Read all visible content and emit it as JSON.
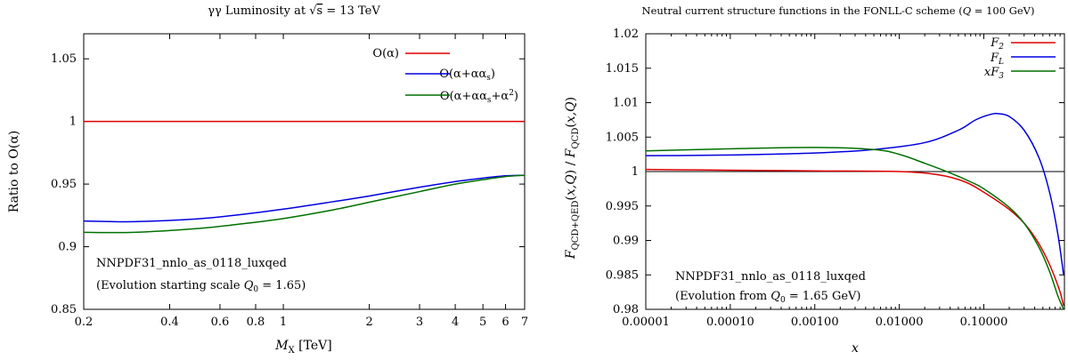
{
  "chart_data": [
    {
      "type": "line",
      "title": "γγ Luminosity at √s = 13 TeV",
      "xlabel": "M_X [TeV]",
      "ylabel": "Ratio to O(α)",
      "x_scale": "log",
      "xlim": [
        0.2,
        7
      ],
      "ylim": [
        0.85,
        1.07
      ],
      "x_ticks": [
        "0.2",
        "0.4",
        "0.6",
        "0.8",
        "1",
        "2",
        "3",
        "4",
        "5",
        "6",
        "7"
      ],
      "y_ticks": [
        "0.85",
        "0.9",
        "0.95",
        "1",
        "1.05"
      ],
      "legend_position": "top-right",
      "series": [
        {
          "name": "O(α)",
          "color": "#e00000",
          "x": [
            0.2,
            7
          ],
          "y": [
            1.0,
            1.0
          ]
        },
        {
          "name": "O(α+αα_s)",
          "color": "#0000e0",
          "x": [
            0.2,
            0.3,
            0.5,
            0.7,
            1,
            1.5,
            2,
            3,
            4,
            5,
            6,
            7
          ],
          "y": [
            0.9205,
            0.92,
            0.9222,
            0.9255,
            0.93,
            0.936,
            0.9405,
            0.9475,
            0.952,
            0.9548,
            0.9566,
            0.957
          ]
        },
        {
          "name": "O(α+αα_s+α²)",
          "color": "#007000",
          "x": [
            0.2,
            0.3,
            0.5,
            0.7,
            1,
            1.5,
            2,
            3,
            4,
            5,
            6,
            7
          ],
          "y": [
            0.9115,
            0.9115,
            0.9145,
            0.918,
            0.9225,
            0.9295,
            0.9355,
            0.944,
            0.95,
            0.9535,
            0.956,
            0.957
          ]
        }
      ],
      "annotations": [
        "NNPDF31_nnlo_as_0118_luxqed",
        "(Evolution starting scale Q_0 = 1.65)"
      ]
    },
    {
      "type": "line",
      "title": "Neutral current structure functions in the FONLL-C scheme (Q = 100 GeV)",
      "xlabel": "x",
      "ylabel": "F_QCD+QED(x,Q) / F_QCD(x,Q)",
      "x_scale": "log",
      "xlim": [
        1e-05,
        0.9
      ],
      "ylim": [
        0.98,
        1.02
      ],
      "x_ticks": [
        "0.00001",
        "0.00010",
        "0.00100",
        "0.01000",
        "0.10000"
      ],
      "y_ticks": [
        "0.98",
        "0.985",
        "0.99",
        "0.995",
        "1",
        "1.005",
        "1.01",
        "1.015",
        "1.02"
      ],
      "legend_position": "top-right",
      "reference_line": 1.0,
      "series": [
        {
          "name": "F_2",
          "color": "#e00000",
          "x": [
            1e-05,
            0.0001,
            0.001,
            0.01,
            0.03,
            0.06,
            0.1,
            0.2,
            0.3,
            0.4,
            0.5,
            0.6,
            0.7,
            0.8,
            0.88
          ],
          "y": [
            1.0003,
            1.0002,
            1.0001,
            1.0,
            0.9995,
            0.9985,
            0.997,
            0.9945,
            0.9925,
            0.9905,
            0.9885,
            0.9865,
            0.9845,
            0.9825,
            0.9805
          ]
        },
        {
          "name": "F_L",
          "color": "#0000e0",
          "x": [
            1e-05,
            0.0001,
            0.001,
            0.005,
            0.02,
            0.05,
            0.08,
            0.12,
            0.15,
            0.2,
            0.3,
            0.45,
            0.6,
            0.75,
            0.88
          ],
          "y": [
            1.0023,
            1.0024,
            1.0027,
            1.0032,
            1.0042,
            1.006,
            1.0075,
            1.0083,
            1.0084,
            1.008,
            1.006,
            1.002,
            0.997,
            0.991,
            0.985
          ]
        },
        {
          "name": "xF_3",
          "color": "#007000",
          "x": [
            1e-05,
            0.0001,
            0.001,
            0.005,
            0.01,
            0.02,
            0.04,
            0.07,
            0.1,
            0.2,
            0.3,
            0.45,
            0.6,
            0.75,
            0.88
          ],
          "y": [
            1.003,
            1.0033,
            1.0035,
            1.0032,
            1.0025,
            1.0012,
            0.9998,
            0.9985,
            0.9975,
            0.9948,
            0.9925,
            0.989,
            0.9855,
            0.982,
            0.98
          ]
        }
      ],
      "annotations": [
        "NNPDF31_nnlo_as_0118_luxqed",
        "(Evolution from Q_0 = 1.65 GeV)"
      ]
    }
  ]
}
